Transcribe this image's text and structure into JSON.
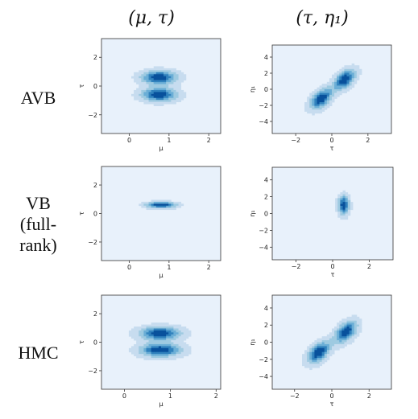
{
  "column_headers": [
    "(μ, τ)",
    "(τ, η₁)"
  ],
  "row_labels": [
    {
      "lines": [
        "AVB"
      ]
    },
    {
      "lines": [
        "VB",
        "(full-",
        "rank)"
      ]
    },
    {
      "lines": [
        "HMC"
      ]
    }
  ],
  "colormap": [
    "#e8f1fb",
    "#c7dcef",
    "#9ecae1",
    "#6baed6",
    "#3182bd",
    "#08519c"
  ],
  "chart_data": [
    {
      "type": "heatmap",
      "kind": "kde",
      "row": 0,
      "col": 0,
      "xlabel": "μ",
      "ylabel": "τ",
      "xlim": [
        -0.7,
        2.3
      ],
      "ylim": [
        -3.3,
        3.3
      ],
      "xticks": [
        0,
        1,
        2
      ],
      "yticks": [
        -2,
        0,
        2
      ],
      "components": [
        {
          "mx": 0.75,
          "my": 0.6,
          "sx": 0.3,
          "sy": 0.32,
          "rho": 0,
          "w": 1
        },
        {
          "mx": 0.75,
          "my": -0.6,
          "sx": 0.3,
          "sy": 0.32,
          "rho": 0,
          "w": 1
        }
      ]
    },
    {
      "type": "heatmap",
      "kind": "kde",
      "row": 0,
      "col": 1,
      "xlabel": "τ",
      "ylabel": "η₁",
      "xlim": [
        -3.3,
        3.3
      ],
      "ylim": [
        -5.5,
        5.5
      ],
      "xticks": [
        -2,
        0,
        2
      ],
      "yticks": [
        -4,
        -2,
        0,
        2,
        4
      ],
      "components": [
        {
          "mx": 0.7,
          "my": 1.2,
          "sx": 0.4,
          "sy": 0.85,
          "rho": 0.5,
          "w": 1
        },
        {
          "mx": -0.6,
          "my": -1.2,
          "sx": 0.4,
          "sy": 0.85,
          "rho": 0.5,
          "w": 1
        }
      ]
    },
    {
      "type": "heatmap",
      "kind": "kde",
      "row": 1,
      "col": 0,
      "xlabel": "μ",
      "ylabel": "τ",
      "xlim": [
        -0.7,
        2.3
      ],
      "ylim": [
        -3.3,
        3.3
      ],
      "xticks": [
        0,
        1,
        2
      ],
      "yticks": [
        -2,
        0,
        2
      ],
      "components": [
        {
          "mx": 0.8,
          "my": 0.6,
          "sx": 0.25,
          "sy": 0.15,
          "rho": 0,
          "w": 1
        }
      ]
    },
    {
      "type": "heatmap",
      "kind": "kde",
      "row": 1,
      "col": 1,
      "xlabel": "τ",
      "ylabel": "η₁",
      "xlim": [
        -3.3,
        3.3
      ],
      "ylim": [
        -5.5,
        5.5
      ],
      "xticks": [
        -2,
        0,
        2
      ],
      "yticks": [
        -4,
        -2,
        0,
        2,
        4
      ],
      "components": [
        {
          "mx": 0.6,
          "my": 1.0,
          "sx": 0.2,
          "sy": 0.75,
          "rho": 0,
          "w": 1
        }
      ]
    },
    {
      "type": "heatmap",
      "kind": "kde",
      "row": 2,
      "col": 0,
      "xlabel": "μ",
      "ylabel": "τ",
      "xlim": [
        -0.5,
        2.1
      ],
      "ylim": [
        -3.3,
        3.3
      ],
      "xticks": [
        0,
        1,
        2
      ],
      "yticks": [
        -2,
        0,
        2
      ],
      "components": [
        {
          "mx": 0.78,
          "my": 0.62,
          "sx": 0.3,
          "sy": 0.32,
          "rho": 0,
          "w": 1
        },
        {
          "mx": 0.78,
          "my": -0.55,
          "sx": 0.3,
          "sy": 0.32,
          "rho": 0,
          "w": 1
        }
      ]
    },
    {
      "type": "heatmap",
      "kind": "kde",
      "row": 2,
      "col": 1,
      "xlabel": "τ",
      "ylabel": "η₁",
      "xlim": [
        -3.2,
        3.2
      ],
      "ylim": [
        -5.5,
        5.5
      ],
      "xticks": [
        -2,
        0,
        2
      ],
      "yticks": [
        -4,
        -2,
        0,
        2,
        4
      ],
      "components": [
        {
          "mx": 0.75,
          "my": 1.2,
          "sx": 0.4,
          "sy": 0.85,
          "rho": 0.5,
          "w": 1
        },
        {
          "mx": -0.7,
          "my": -1.2,
          "sx": 0.4,
          "sy": 0.85,
          "rho": 0.5,
          "w": 1
        }
      ]
    }
  ]
}
